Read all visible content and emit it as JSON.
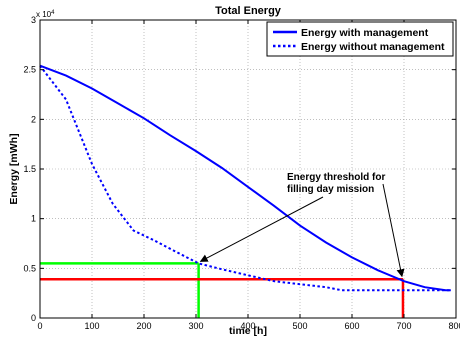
{
  "chart_data": {
    "type": "line",
    "title": "Total Energy",
    "xlabel": "time [h]",
    "ylabel": "Energy [mWh]",
    "y_exponent_label": "x 10",
    "y_exponent_power": "4",
    "xlim": [
      0,
      800
    ],
    "ylim": [
      0,
      3
    ],
    "x_ticks": [
      0,
      100,
      200,
      300,
      400,
      500,
      600,
      700,
      800
    ],
    "y_ticks": [
      0,
      0.5,
      1,
      1.5,
      2,
      2.5,
      3
    ],
    "x_tick_labels": [
      "0",
      "100",
      "200",
      "300",
      "400",
      "500",
      "600",
      "700",
      "800"
    ],
    "y_tick_labels": [
      "0",
      "0.5",
      "1",
      "1.5",
      "2",
      "2.5",
      "3"
    ],
    "grid": true,
    "legend_position": "top-right",
    "series": [
      {
        "name": "Energy with management",
        "style": "solid",
        "color": "#0000ff",
        "points": [
          [
            0,
            2.54
          ],
          [
            50,
            2.44
          ],
          [
            100,
            2.31
          ],
          [
            150,
            2.16
          ],
          [
            200,
            2.01
          ],
          [
            250,
            1.84
          ],
          [
            300,
            1.68
          ],
          [
            350,
            1.51
          ],
          [
            400,
            1.32
          ],
          [
            450,
            1.13
          ],
          [
            500,
            0.93
          ],
          [
            550,
            0.76
          ],
          [
            600,
            0.61
          ],
          [
            650,
            0.48
          ],
          [
            700,
            0.37
          ],
          [
            740,
            0.31
          ],
          [
            780,
            0.28
          ],
          [
            790,
            0.28
          ]
        ]
      },
      {
        "name": "Energy without management",
        "style": "dotted",
        "color": "#0000ff",
        "points": [
          [
            0,
            2.54
          ],
          [
            50,
            2.2
          ],
          [
            100,
            1.55
          ],
          [
            140,
            1.15
          ],
          [
            180,
            0.88
          ],
          [
            220,
            0.78
          ],
          [
            260,
            0.67
          ],
          [
            305,
            0.55
          ],
          [
            350,
            0.49
          ],
          [
            400,
            0.43
          ],
          [
            450,
            0.37
          ],
          [
            500,
            0.34
          ],
          [
            550,
            0.31
          ],
          [
            580,
            0.28
          ],
          [
            640,
            0.28
          ],
          [
            700,
            0.28
          ],
          [
            760,
            0.28
          ],
          [
            790,
            0.28
          ]
        ]
      }
    ],
    "reference_lines": [
      {
        "name": "green-threshold",
        "color": "#00ff00",
        "x": 305,
        "y": 0.55
      },
      {
        "name": "red-threshold",
        "color": "#ff0000",
        "x": 698,
        "y": 0.39
      }
    ],
    "annotation": {
      "lines": [
        "Energy threshold for",
        "filling day mission"
      ],
      "arrow_targets": [
        [
          305,
          0.55
        ],
        [
          698,
          0.39
        ]
      ]
    }
  }
}
